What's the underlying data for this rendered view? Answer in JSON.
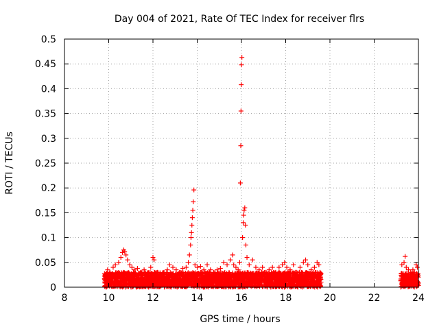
{
  "chart_data": {
    "type": "scatter",
    "title": "Day 004 of 2021, Rate Of TEC Index for receiver flrs",
    "xlabel": "GPS time / hours",
    "ylabel": "ROTI / TECUs",
    "xlim": [
      8,
      24
    ],
    "ylim": [
      0,
      0.5
    ],
    "x_ticks": [
      8,
      10,
      12,
      14,
      16,
      18,
      20,
      22,
      24
    ],
    "x_tick_labels": [
      "8",
      "10",
      "12",
      "14",
      "16",
      "18",
      "20",
      "22",
      "24"
    ],
    "y_ticks": [
      0,
      0.05,
      0.1,
      0.15,
      0.2,
      0.25,
      0.3,
      0.35,
      0.4,
      0.45,
      0.5
    ],
    "y_tick_labels": [
      "0",
      "0.05",
      "0.1",
      "0.15",
      "0.2",
      "0.25",
      "0.3",
      "0.35",
      "0.4",
      "0.45",
      "0.5"
    ],
    "grid": true,
    "marker": "+",
    "marker_color": "#ff0000",
    "series": [
      {
        "name": "ROTI",
        "x": [
          9.85,
          9.95,
          10.05,
          10.2,
          10.3,
          10.45,
          10.55,
          10.62,
          10.68,
          10.72,
          10.78,
          10.85,
          10.95,
          11.05,
          11.15,
          11.3,
          11.45,
          11.6,
          11.75,
          11.9,
          12.0,
          12.05,
          12.2,
          12.35,
          12.5,
          12.65,
          12.75,
          12.9,
          13.05,
          13.2,
          13.35,
          13.5,
          13.6,
          13.65,
          13.7,
          13.72,
          13.74,
          13.76,
          13.78,
          13.8,
          13.82,
          13.85,
          13.9,
          14.0,
          14.15,
          14.3,
          14.45,
          14.6,
          14.75,
          14.9,
          15.05,
          15.2,
          15.35,
          15.5,
          15.6,
          15.65,
          15.75,
          15.85,
          15.92,
          15.95,
          15.97,
          15.98,
          15.99,
          16.0,
          16.02,
          16.05,
          16.08,
          16.1,
          16.12,
          16.15,
          16.18,
          16.2,
          16.25,
          16.35,
          16.5,
          16.65,
          16.8,
          16.95,
          17.1,
          17.25,
          17.4,
          17.55,
          17.7,
          17.85,
          17.95,
          18.05,
          18.2,
          18.35,
          18.5,
          18.65,
          18.8,
          18.9,
          19.0,
          19.15,
          19.3,
          19.42,
          19.5,
          19.55,
          23.25,
          23.35,
          23.4,
          23.45,
          23.55,
          23.65,
          23.75,
          23.82,
          23.9,
          23.95
        ],
        "y": [
          0.02,
          0.035,
          0.03,
          0.04,
          0.045,
          0.05,
          0.06,
          0.07,
          0.075,
          0.072,
          0.065,
          0.055,
          0.045,
          0.04,
          0.035,
          0.038,
          0.03,
          0.035,
          0.028,
          0.04,
          0.06,
          0.055,
          0.03,
          0.025,
          0.03,
          0.035,
          0.045,
          0.04,
          0.035,
          0.03,
          0.038,
          0.04,
          0.05,
          0.065,
          0.085,
          0.1,
          0.11,
          0.125,
          0.14,
          0.155,
          0.172,
          0.196,
          0.045,
          0.04,
          0.042,
          0.035,
          0.045,
          0.035,
          0.03,
          0.035,
          0.038,
          0.05,
          0.045,
          0.055,
          0.065,
          0.045,
          0.04,
          0.035,
          0.05,
          0.21,
          0.285,
          0.355,
          0.408,
          0.448,
          0.463,
          0.1,
          0.13,
          0.145,
          0.155,
          0.16,
          0.125,
          0.085,
          0.06,
          0.045,
          0.055,
          0.04,
          0.035,
          0.04,
          0.03,
          0.035,
          0.04,
          0.03,
          0.04,
          0.045,
          0.05,
          0.04,
          0.035,
          0.045,
          0.03,
          0.04,
          0.05,
          0.055,
          0.045,
          0.035,
          0.04,
          0.05,
          0.045,
          0.03,
          0.045,
          0.05,
          0.062,
          0.04,
          0.035,
          0.03,
          0.035,
          0.03,
          0.045,
          0.04
        ]
      }
    ],
    "dense_bands": [
      {
        "x_start": 9.8,
        "x_end": 19.6,
        "y_min": 0.0,
        "y_max": 0.03
      },
      {
        "x_start": 23.2,
        "x_end": 24.0,
        "y_min": 0.0,
        "y_max": 0.028
      }
    ]
  }
}
